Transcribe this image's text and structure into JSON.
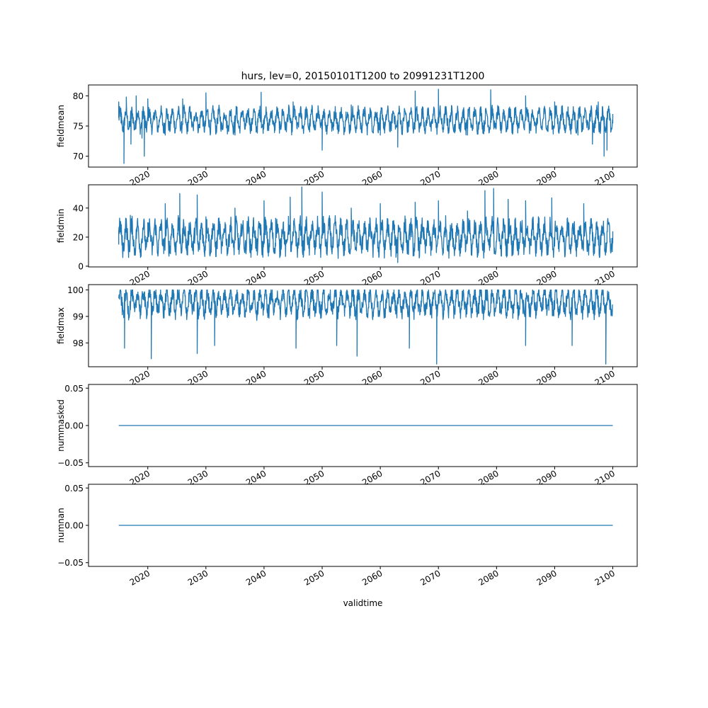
{
  "figure": {
    "title": "hurs, lev=0, 20150101T1200 to 20991231T1200"
  },
  "chart_data": [
    {
      "type": "line",
      "ylabel": "fieldmean",
      "xlabel": "",
      "x_range": [
        2015.0,
        2100.0
      ],
      "xlim": [
        2009.8,
        2104.2
      ],
      "ylim": [
        68.2,
        81.8
      ],
      "yticks": [
        70,
        75,
        80
      ],
      "ytick_labels": [
        "70",
        "75",
        "80"
      ],
      "xticks": [
        2020,
        2030,
        2040,
        2050,
        2060,
        2070,
        2080,
        2090,
        2100
      ],
      "xtick_labels": [
        "2020",
        "2030",
        "2040",
        "2050",
        "2060",
        "2070",
        "2080",
        "2090",
        "2100"
      ],
      "series": [
        {
          "color": "#1f77b4",
          "typical_range": [
            73.5,
            78.5
          ],
          "observed_min": 68.8,
          "observed_max": 81.1,
          "x": [
            2015.0,
            2015.4,
            2015.9,
            2016.3,
            2017.1,
            2018.0,
            2019.0,
            2019.4,
            2020.0,
            2023.0,
            2026.0,
            2030.0,
            2035.0,
            2039.5,
            2045.0,
            2050.0,
            2055.0,
            2060.0,
            2063.0,
            2066.0,
            2070.0,
            2075.0,
            2079.0,
            2085.0,
            2090.0,
            2094.0,
            2096.5,
            2097.5,
            2098.5,
            2099.0,
            2100.0
          ],
          "y": [
            79.0,
            75.5,
            68.8,
            79.8,
            72.0,
            80.0,
            73.0,
            70.0,
            79.5,
            73.5,
            79.5,
            80.5,
            73.5,
            80.6,
            79.0,
            71.0,
            78.5,
            73.5,
            71.5,
            80.8,
            81.1,
            73.5,
            81.0,
            80.0,
            79.0,
            73.5,
            72.0,
            79.0,
            70.0,
            71.0,
            77.0
          ]
        }
      ]
    },
    {
      "type": "line",
      "ylabel": "fieldmin",
      "xlabel": "",
      "x_range": [
        2015.0,
        2100.0
      ],
      "xlim": [
        2009.8,
        2104.2
      ],
      "ylim": [
        -0.5,
        56.0
      ],
      "yticks": [
        0,
        20,
        40
      ],
      "ytick_labels": [
        "0",
        "20",
        "40"
      ],
      "xticks": [
        2020,
        2030,
        2040,
        2050,
        2060,
        2070,
        2080,
        2090,
        2100
      ],
      "xtick_labels": [
        "2020",
        "2030",
        "2040",
        "2050",
        "2060",
        "2070",
        "2080",
        "2090",
        "2100"
      ],
      "series": [
        {
          "color": "#1f77b4",
          "typical_range": [
            5,
            35
          ],
          "observed_min": 2.0,
          "observed_max": 54.5,
          "x": [
            2015.0,
            2017.0,
            2020.0,
            2023.0,
            2025.5,
            2028.5,
            2030.0,
            2035.0,
            2040.0,
            2042.0,
            2044.5,
            2046.5,
            2050.0,
            2055.0,
            2060.0,
            2063.0,
            2066.0,
            2070.0,
            2075.0,
            2078.0,
            2079.5,
            2082.0,
            2085.0,
            2089.5,
            2095.0,
            2099.0,
            2100.0
          ],
          "y": [
            24.0,
            35.0,
            30.0,
            43.0,
            50.0,
            49.0,
            34.0,
            40.0,
            45.0,
            33.0,
            47.5,
            54.5,
            51.0,
            40.0,
            43.0,
            2.5,
            44.0,
            45.0,
            38.0,
            52.0,
            53.5,
            46.0,
            45.0,
            47.0,
            43.0,
            24.0,
            24.0
          ]
        }
      ]
    },
    {
      "type": "line",
      "ylabel": "fieldmax",
      "xlabel": "",
      "x_range": [
        2015.0,
        2100.0
      ],
      "xlim": [
        2009.8,
        2104.2
      ],
      "ylim": [
        97.1,
        100.2
      ],
      "yticks": [
        98,
        99,
        100
      ],
      "ytick_labels": [
        "98",
        "99",
        "100"
      ],
      "xticks": [
        2020,
        2030,
        2040,
        2050,
        2060,
        2070,
        2080,
        2090,
        2100
      ],
      "xtick_labels": [
        "2020",
        "2030",
        "2040",
        "2050",
        "2060",
        "2070",
        "2080",
        "2090",
        "2100"
      ],
      "series": [
        {
          "color": "#1f77b4",
          "typical_range": [
            98.6,
            100.0
          ],
          "observed_min": 97.2,
          "observed_max": 100.0,
          "x": [
            2016.0,
            2020.6,
            2028.5,
            2031.5,
            2045.5,
            2052.5,
            2056.0,
            2065.0,
            2069.7,
            2085.0,
            2093.0,
            2098.8
          ],
          "y": [
            97.8,
            97.4,
            97.6,
            97.9,
            97.8,
            97.9,
            97.5,
            97.8,
            97.2,
            97.9,
            97.9,
            97.2
          ]
        }
      ]
    },
    {
      "type": "line",
      "ylabel": "nummasked",
      "xlabel": "",
      "x_range": [
        2015.0,
        2100.0
      ],
      "xlim": [
        2009.8,
        2104.2
      ],
      "ylim": [
        -0.055,
        0.055
      ],
      "yticks": [
        -0.05,
        0.0,
        0.05
      ],
      "ytick_labels": [
        "−0.05",
        "0.00",
        "0.05"
      ],
      "xticks": [
        2020,
        2030,
        2040,
        2050,
        2060,
        2070,
        2080,
        2090,
        2100
      ],
      "xtick_labels": [
        "2020",
        "2030",
        "2040",
        "2050",
        "2060",
        "2070",
        "2080",
        "2090",
        "2100"
      ],
      "series": [
        {
          "color": "#1f77b4",
          "x": [
            2015.0,
            2100.0
          ],
          "y": [
            0.0,
            0.0
          ]
        }
      ]
    },
    {
      "type": "line",
      "ylabel": "numnan",
      "xlabel": "validtime",
      "x_range": [
        2015.0,
        2100.0
      ],
      "xlim": [
        2009.8,
        2104.2
      ],
      "ylim": [
        -0.055,
        0.055
      ],
      "yticks": [
        -0.05,
        0.0,
        0.05
      ],
      "ytick_labels": [
        "−0.05",
        "0.00",
        "0.05"
      ],
      "xticks": [
        2020,
        2030,
        2040,
        2050,
        2060,
        2070,
        2080,
        2090,
        2100
      ],
      "xtick_labels": [
        "2020",
        "2030",
        "2040",
        "2050",
        "2060",
        "2070",
        "2080",
        "2090",
        "2100"
      ],
      "series": [
        {
          "color": "#1f77b4",
          "x": [
            2015.0,
            2100.0
          ],
          "y": [
            0.0,
            0.0
          ]
        }
      ]
    }
  ]
}
